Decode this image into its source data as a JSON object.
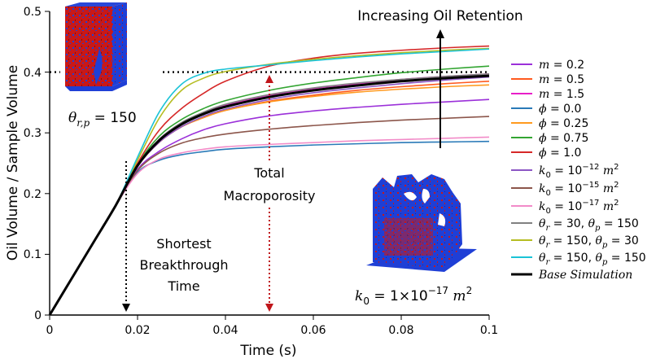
{
  "chart_data": {
    "type": "line",
    "title": "",
    "xlabel": "Time (s)",
    "ylabel": "Oil Volume / Sample Volume",
    "xlim": [
      0,
      0.1
    ],
    "ylim": [
      0,
      0.5
    ],
    "xticks": [
      "0",
      "0.02",
      "0.04",
      "0.06",
      "0.08",
      "0.1"
    ],
    "yticks": [
      "0",
      "0.1",
      "0.2",
      "0.3",
      "0.4",
      "0.5"
    ],
    "grid": false,
    "legend_position": "right",
    "reference_line": {
      "y": 0.4,
      "style": "dotted"
    },
    "x": [
      0,
      0.005,
      0.01,
      0.015,
      0.02,
      0.025,
      0.03,
      0.035,
      0.04,
      0.05,
      0.06,
      0.07,
      0.08,
      0.09,
      0.1
    ],
    "series": [
      {
        "name": "m = 0.2",
        "color": "#9b30d9",
        "values": [
          0,
          0.06,
          0.12,
          0.18,
          0.24,
          0.27,
          0.29,
          0.305,
          0.315,
          0.328,
          0.336,
          0.342,
          0.347,
          0.351,
          0.355
        ]
      },
      {
        "name": "m = 0.5",
        "color": "#ff5a1f",
        "values": [
          0,
          0.06,
          0.12,
          0.18,
          0.245,
          0.285,
          0.31,
          0.325,
          0.337,
          0.352,
          0.362,
          0.37,
          0.376,
          0.381,
          0.385
        ]
      },
      {
        "name": "m = 1.5",
        "color": "#e81ec8",
        "values": [
          0,
          0.06,
          0.12,
          0.18,
          0.245,
          0.29,
          0.315,
          0.332,
          0.345,
          0.362,
          0.373,
          0.381,
          0.388,
          0.393,
          0.397
        ]
      },
      {
        "name": "ϕ = 0.0",
        "color": "#2a7ab8",
        "values": [
          0,
          0.06,
          0.12,
          0.18,
          0.235,
          0.255,
          0.264,
          0.269,
          0.273,
          0.277,
          0.28,
          0.282,
          0.284,
          0.285,
          0.286
        ]
      },
      {
        "name": "ϕ = 0.25",
        "color": "#ff9a1f",
        "values": [
          0,
          0.06,
          0.12,
          0.18,
          0.245,
          0.285,
          0.31,
          0.325,
          0.337,
          0.351,
          0.36,
          0.367,
          0.372,
          0.376,
          0.379
        ]
      },
      {
        "name": "ϕ = 0.75",
        "color": "#33a532",
        "values": [
          0,
          0.06,
          0.12,
          0.18,
          0.248,
          0.295,
          0.322,
          0.34,
          0.353,
          0.37,
          0.382,
          0.391,
          0.399,
          0.405,
          0.41
        ]
      },
      {
        "name": "ϕ = 1.0",
        "color": "#d62828",
        "values": [
          0,
          0.06,
          0.12,
          0.18,
          0.25,
          0.305,
          0.34,
          0.365,
          0.385,
          0.41,
          0.423,
          0.431,
          0.436,
          0.44,
          0.443
        ]
      },
      {
        "name": "k0 = 10^-12 m^2",
        "color": "#8c56c4",
        "values": [
          0,
          0.06,
          0.12,
          0.18,
          0.245,
          0.285,
          0.31,
          0.327,
          0.339,
          0.355,
          0.366,
          0.374,
          0.381,
          0.387,
          0.392
        ]
      },
      {
        "name": "k0 = 10^-15 m^2",
        "color": "#8c564b",
        "values": [
          0,
          0.06,
          0.12,
          0.18,
          0.238,
          0.267,
          0.283,
          0.292,
          0.298,
          0.306,
          0.312,
          0.317,
          0.321,
          0.324,
          0.327
        ]
      },
      {
        "name": "k0 = 10^-17 m^2",
        "color": "#f28bc8",
        "values": [
          0,
          0.06,
          0.12,
          0.18,
          0.233,
          0.257,
          0.267,
          0.273,
          0.277,
          0.281,
          0.284,
          0.287,
          0.289,
          0.291,
          0.293
        ]
      },
      {
        "name": "θr = 30, θp = 150",
        "color": "#808080",
        "values": [
          0,
          0.06,
          0.12,
          0.18,
          0.247,
          0.29,
          0.317,
          0.334,
          0.347,
          0.363,
          0.374,
          0.382,
          0.388,
          0.393,
          0.397
        ]
      },
      {
        "name": "θr = 150, θp = 30",
        "color": "#b5bd22",
        "values": [
          0,
          0.06,
          0.12,
          0.18,
          0.255,
          0.325,
          0.37,
          0.39,
          0.401,
          0.413,
          0.421,
          0.427,
          0.432,
          0.436,
          0.439
        ]
      },
      {
        "name": "θr = 150, θp = 150",
        "color": "#1bc3d6",
        "values": [
          0,
          0.06,
          0.12,
          0.18,
          0.26,
          0.335,
          0.38,
          0.398,
          0.405,
          0.412,
          0.419,
          0.425,
          0.43,
          0.434,
          0.438
        ]
      },
      {
        "name": "Base Simulation",
        "color": "#000000",
        "values": [
          0,
          0.06,
          0.12,
          0.18,
          0.246,
          0.288,
          0.314,
          0.331,
          0.343,
          0.359,
          0.37,
          0.378,
          0.385,
          0.39,
          0.394
        ]
      }
    ],
    "annotations": {
      "increasing": "Increasing Oil Retention",
      "macro_line1": "Total",
      "macro_line2": "Macroporosity",
      "shortest_line1": "Shortest",
      "shortest_line2": "Breakthrough",
      "shortest_line3": "Time",
      "top_image_label": "θr,p = 150",
      "bottom_image_label": "k0 = 1×10^-17 m^2"
    }
  },
  "legend_display": {
    "m02": {
      "v": "m",
      "rest": " = 0.2"
    },
    "m05": {
      "v": "m",
      "rest": " = 0.5"
    },
    "m15": {
      "v": "m",
      "rest": " = 1.5"
    },
    "phi0": {
      "v": "ϕ",
      "rest": " = 0.0"
    },
    "phi025": {
      "v": "ϕ",
      "rest": " = 0.25"
    },
    "phi075": {
      "v": "ϕ",
      "rest": " = 0.75"
    },
    "phi1": {
      "v": "ϕ",
      "rest": " = 1.0"
    },
    "k12": {
      "v": "k",
      "sub": "0",
      "eq": " = 10",
      "exp": "−12",
      "unit": " m",
      "unit_exp": "2"
    },
    "k15": {
      "v": "k",
      "sub": "0",
      "eq": " = 10",
      "exp": "−15",
      "unit": " m",
      "unit_exp": "2"
    },
    "k17": {
      "v": "k",
      "sub": "0",
      "eq": " = 10",
      "exp": "−17",
      "unit": " m",
      "unit_exp": "2"
    },
    "th1": {
      "v1": "θ",
      "s1": "r",
      "m1": " = 30, ",
      "v2": "θ",
      "s2": "p",
      "m2": " = 150"
    },
    "th2": {
      "v1": "θ",
      "s1": "r",
      "m1": " = 150, ",
      "v2": "θ",
      "s2": "p",
      "m2": " = 30"
    },
    "th3": {
      "v1": "θ",
      "s1": "r",
      "m1": " = 150, ",
      "v2": "θ",
      "s2": "p",
      "m2": " = 150"
    },
    "base": "Base Simulation"
  },
  "image_labels": {
    "top": {
      "v": "θ",
      "sub": "r,p",
      "rest": " = 150"
    },
    "bottom": {
      "v": "k",
      "sub": "0",
      "eq": " = 1×10",
      "exp": "−17",
      "unit": " m",
      "unit_exp": "2"
    }
  },
  "colors": {
    "pore_blue": "#1f3fd6",
    "pore_red": "#d11a1a"
  }
}
